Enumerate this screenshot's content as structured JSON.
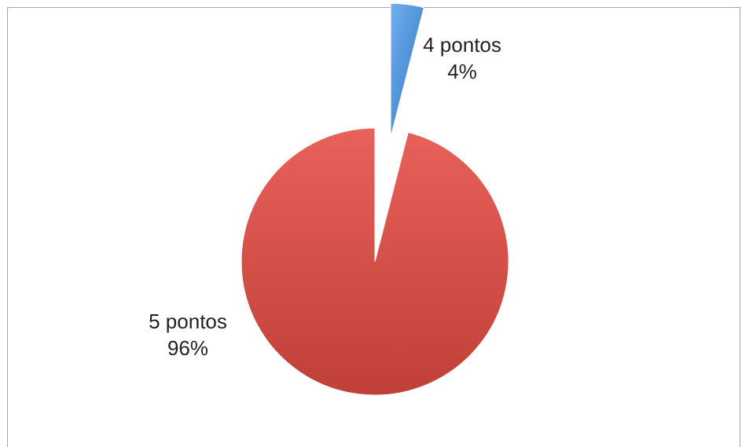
{
  "chart_data": {
    "type": "pie",
    "title": "",
    "slices": [
      {
        "label": "4 pontos",
        "value": 4,
        "value_label": "4%",
        "color": "#4a90d9",
        "exploded": true
      },
      {
        "label": "5 pontos",
        "value": 96,
        "value_label": "96%",
        "color": "#d9534a",
        "exploded": false
      }
    ],
    "legend": "none"
  }
}
